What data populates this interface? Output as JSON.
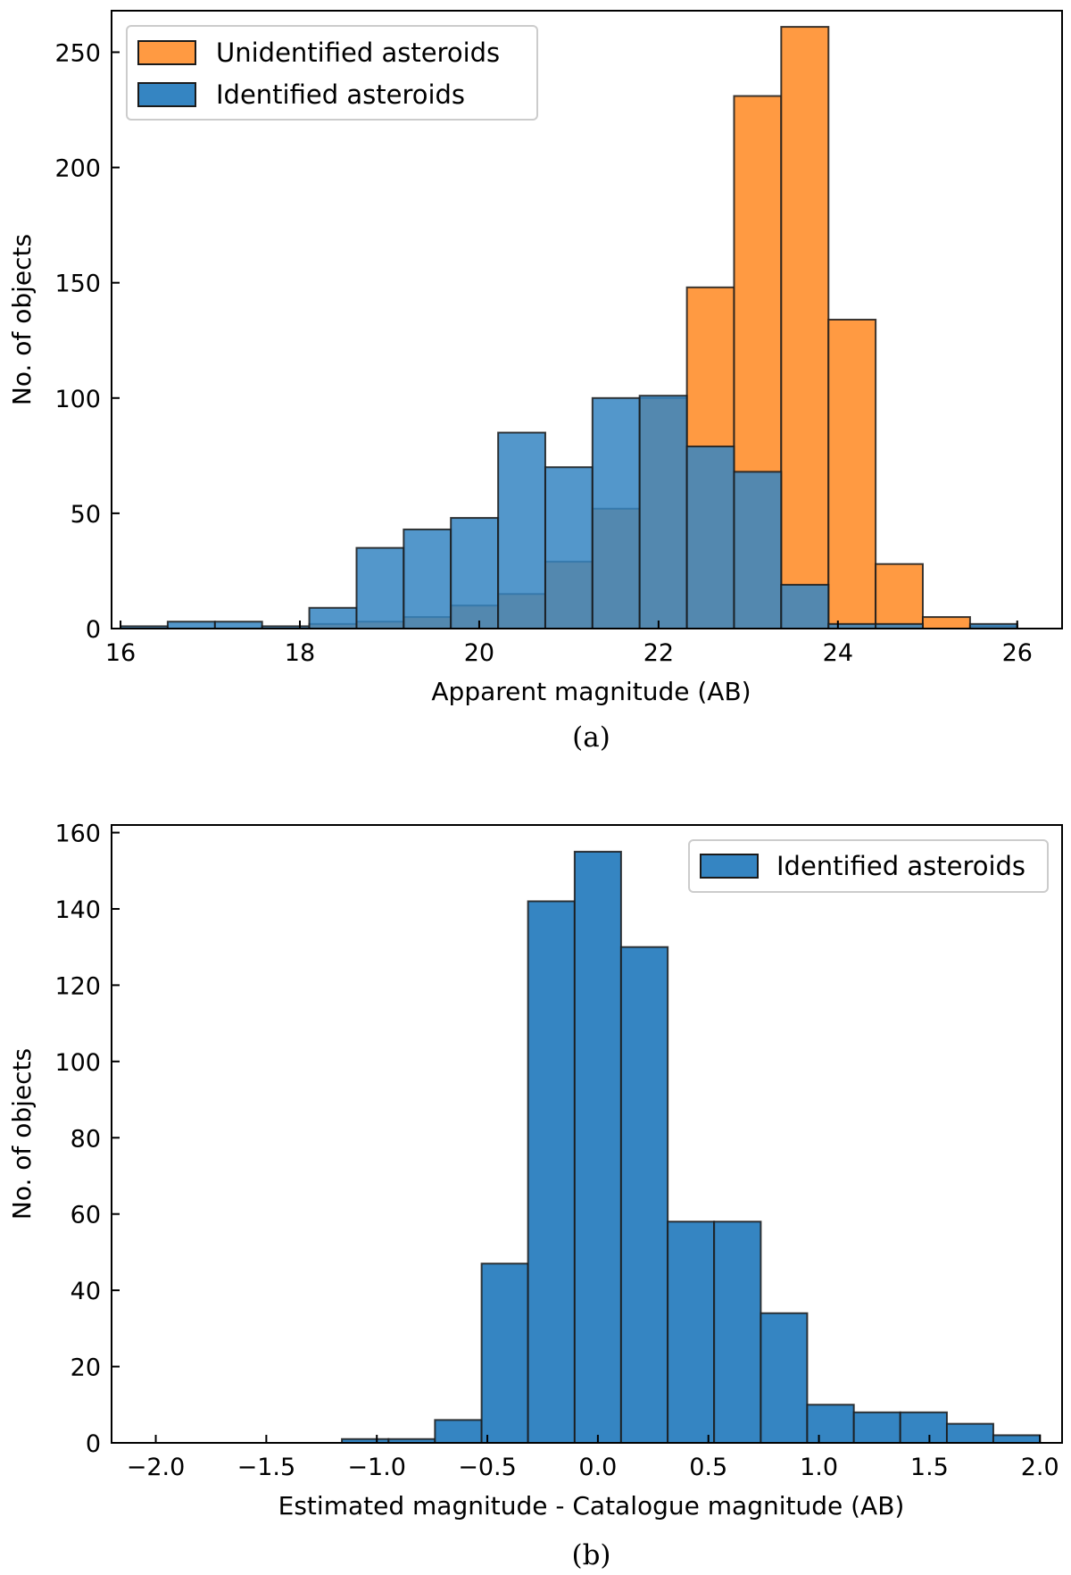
{
  "chart_data": [
    {
      "type": "bar",
      "subtype": "histogram",
      "caption": "(a)",
      "xlabel": "Apparent magnitude (AB)",
      "ylabel": "No. of objects",
      "xlim": [
        15.9,
        26.5
      ],
      "ylim": [
        0,
        268
      ],
      "xticks": [
        16,
        18,
        20,
        22,
        24,
        26
      ],
      "yticks": [
        0,
        50,
        100,
        150,
        200,
        250
      ],
      "legend_position": "upper-left",
      "bin_edges": [
        16.0,
        16.526,
        17.053,
        17.579,
        18.105,
        18.632,
        19.158,
        19.684,
        20.211,
        20.737,
        21.263,
        21.789,
        22.316,
        22.842,
        23.368,
        23.895,
        24.421,
        24.947,
        25.474,
        26.0
      ],
      "series": [
        {
          "name": "Unidentified asteroids",
          "color": "#ff9a42",
          "values": [
            0,
            0,
            0,
            0,
            2,
            3,
            5,
            10,
            15,
            29,
            52,
            100,
            148,
            231,
            261,
            134,
            28,
            5,
            1
          ]
        },
        {
          "name": "Identified asteroids",
          "color": "#3585c2",
          "values": [
            1,
            3,
            3,
            1,
            9,
            35,
            43,
            48,
            85,
            70,
            100,
            101,
            79,
            68,
            19,
            2,
            2,
            0,
            2
          ]
        }
      ]
    },
    {
      "type": "bar",
      "subtype": "histogram",
      "caption": "(b)",
      "xlabel": "Estimated magnitude - Catalogue magnitude (AB)",
      "ylabel": "No. of objects",
      "xlim": [
        -2.2,
        2.1
      ],
      "ylim": [
        0,
        162
      ],
      "xticks": [
        -2.0,
        -1.5,
        -1.0,
        -0.5,
        0.0,
        0.5,
        1.0,
        1.5,
        2.0
      ],
      "xtick_labels": [
        "−2.0",
        "−1.5",
        "−1.0",
        "−0.5",
        "0.0",
        "0.5",
        "1.0",
        "1.5",
        "2.0"
      ],
      "yticks": [
        0,
        20,
        40,
        60,
        80,
        100,
        120,
        140,
        160
      ],
      "legend_position": "upper-right",
      "bin_edges": [
        -2.0,
        -1.789,
        -1.579,
        -1.368,
        -1.158,
        -0.947,
        -0.737,
        -0.526,
        -0.316,
        -0.105,
        0.105,
        0.316,
        0.526,
        0.737,
        0.947,
        1.158,
        1.368,
        1.579,
        1.789,
        2.0
      ],
      "series": [
        {
          "name": "Identified asteroids",
          "color": "#3585c2",
          "values": [
            0,
            0,
            0,
            0,
            1,
            1,
            6,
            47,
            142,
            155,
            130,
            58,
            58,
            34,
            10,
            8,
            8,
            5,
            2
          ]
        }
      ]
    }
  ]
}
